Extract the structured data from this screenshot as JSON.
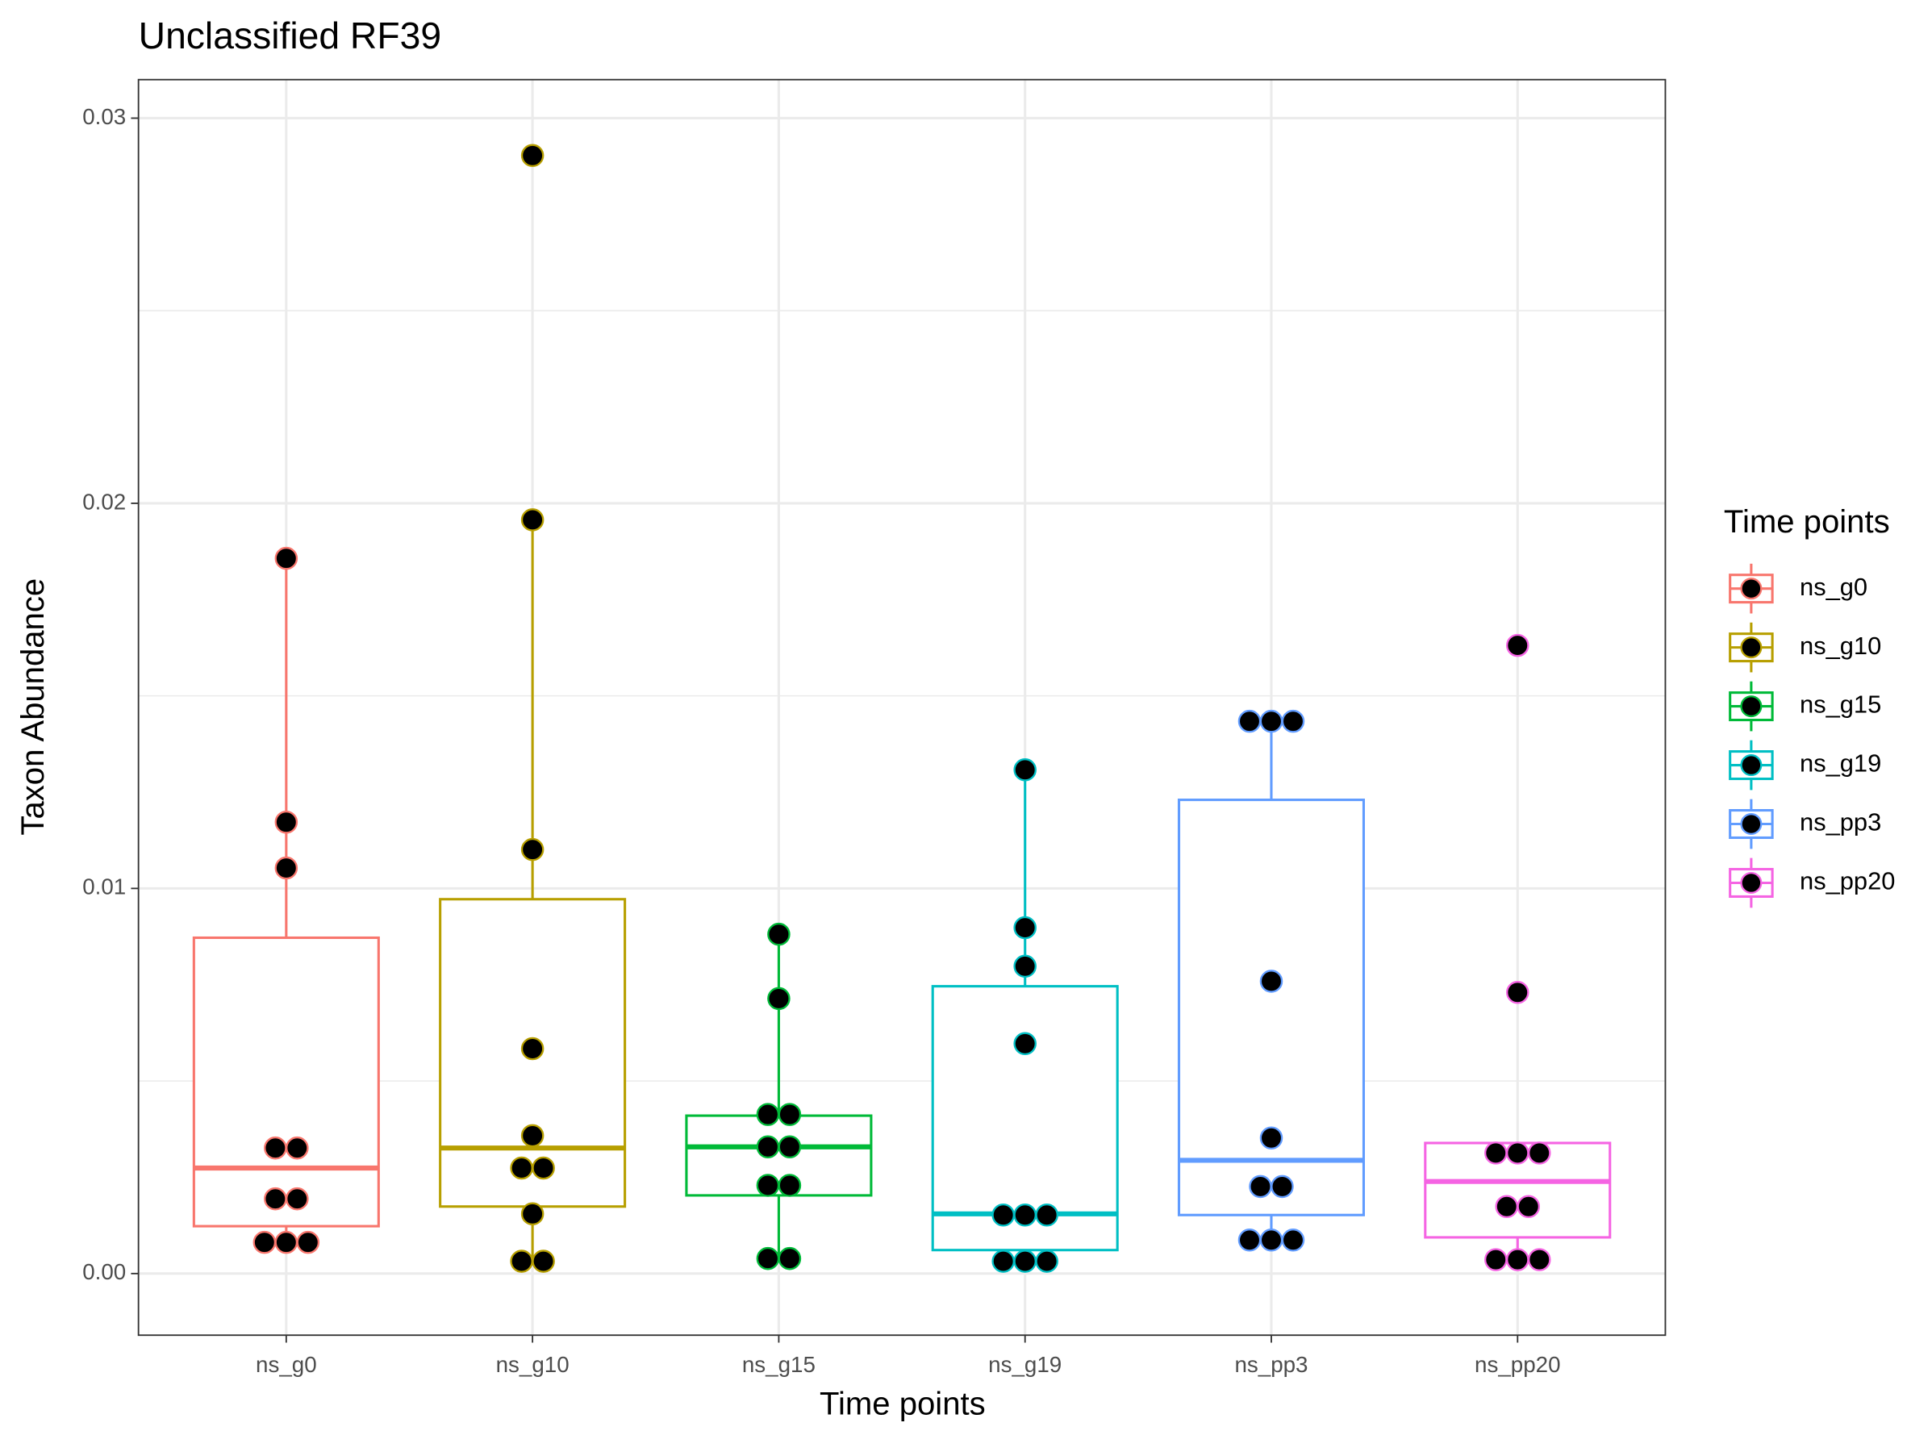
{
  "chart_data": {
    "type": "boxplot",
    "title": "Unclassified RF39",
    "x_label": "Time points",
    "y_label": "Taxon Abundance",
    "legend_title": "Time points",
    "legend_position": "right",
    "grid": true,
    "categories": [
      "ns_g0",
      "ns_g10",
      "ns_g15",
      "ns_g19",
      "ns_pp3",
      "ns_pp20"
    ],
    "ylim": [
      -0.0016,
      0.031
    ],
    "yticks": [
      {
        "value": 0,
        "label": "0.00"
      },
      0.01,
      0.02,
      0.03
    ],
    "yminorticks": [
      0.005,
      0.015,
      0.025
    ],
    "series": [
      {
        "name": "ns_g0",
        "color": "#F8766D",
        "whisker_low": 0.00081,
        "q1": 0.00123,
        "median": 0.00274,
        "q3": 0.00872,
        "whisker_high": 0.01857,
        "points": [
          0.01857,
          0.01172,
          0.01053,
          0.00326,
          0.00326,
          0.00194,
          0.00194,
          0.00081,
          0.00081,
          0.00081
        ]
      },
      {
        "name": "ns_g10",
        "color": "#B79F00",
        "whisker_low": 0.00032,
        "q1": 0.00174,
        "median": 0.00326,
        "q3": 0.00972,
        "whisker_high": 0.01957,
        "points": [
          0.02903,
          0.01957,
          0.01101,
          0.00584,
          0.00358,
          0.00274,
          0.00274,
          0.00155,
          0.00032,
          0.00032
        ]
      },
      {
        "name": "ns_g15",
        "color": "#00BA38",
        "whisker_low": 0.00039,
        "q1": 0.00203,
        "median": 0.00329,
        "q3": 0.0041,
        "whisker_high": 0.00881,
        "points": [
          0.00881,
          0.00714,
          0.00413,
          0.00413,
          0.00329,
          0.00329,
          0.00229,
          0.00229,
          0.00039,
          0.00039
        ]
      },
      {
        "name": "ns_g19",
        "color": "#00BFC4",
        "whisker_low": 0.00032,
        "q1": 0.00061,
        "median": 0.00155,
        "q3": 0.00746,
        "whisker_high": 0.01308,
        "points": [
          0.01308,
          0.00898,
          0.00798,
          0.00597,
          0.00152,
          0.00152,
          0.00152,
          0.00032,
          0.00032,
          0.00032
        ]
      },
      {
        "name": "ns_pp3",
        "color": "#619CFF",
        "whisker_low": 0.00087,
        "q1": 0.00152,
        "median": 0.00294,
        "q3": 0.0123,
        "whisker_high": 0.01434,
        "points": [
          0.01434,
          0.01434,
          0.01434,
          0.00759,
          0.00352,
          0.00226,
          0.00226,
          0.00087,
          0.00087,
          0.00087
        ]
      },
      {
        "name": "ns_pp20",
        "color": "#F564E3",
        "whisker_low": 0.00036,
        "q1": 0.00094,
        "median": 0.00239,
        "q3": 0.00339,
        "whisker_high": 0.00339,
        "points": [
          0.01631,
          0.0073,
          0.00313,
          0.00313,
          0.00313,
          0.00174,
          0.00174,
          0.00036,
          0.00036,
          0.00036
        ]
      }
    ]
  }
}
